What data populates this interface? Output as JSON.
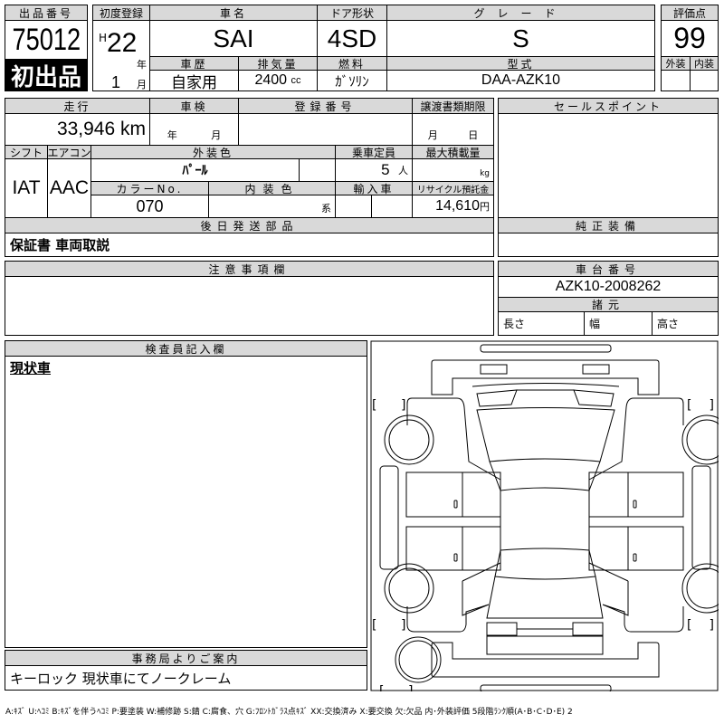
{
  "lot": {
    "label": "出品番号",
    "number": "75012",
    "badge": "初出品"
  },
  "first_reg": {
    "label": "初度登録",
    "era": "H",
    "year": "22",
    "year_unit": "年",
    "month": "1",
    "month_unit": "月"
  },
  "car_name": {
    "label": "車名",
    "value": "SAI"
  },
  "door": {
    "label": "ドア形状",
    "value": "4SD"
  },
  "grade": {
    "label": "グレード",
    "value": "S"
  },
  "score": {
    "label": "評価点",
    "value": "99",
    "exterior_label": "外装",
    "interior_label": "内装",
    "exterior": "",
    "interior": ""
  },
  "history": {
    "label": "車歴",
    "value": "自家用"
  },
  "displacement": {
    "label": "排気量",
    "value": "2400",
    "unit": "cc"
  },
  "fuel": {
    "label": "燃料",
    "value": "ｶﾞｿﾘﾝ"
  },
  "model": {
    "label": "型式",
    "value": "DAA-AZK10"
  },
  "mileage": {
    "label": "走行",
    "value": "33,946 km"
  },
  "inspection": {
    "label": "車検",
    "year_unit": "年",
    "month_unit": "月"
  },
  "reg_number": {
    "label": "登録番号"
  },
  "transfer": {
    "label": "譲渡書類期限",
    "month_unit": "月",
    "day_unit": "日"
  },
  "shift": {
    "label": "シフト",
    "value": "IAT"
  },
  "aircon": {
    "label": "エアコン",
    "value": "AAC"
  },
  "ext_color": {
    "label": "外装色",
    "value": "ﾊﾟｰﾙ"
  },
  "capacity": {
    "label": "乗車定員",
    "value": "5",
    "unit": "人"
  },
  "max_load": {
    "label": "最大積載量",
    "unit": "kg"
  },
  "color_no": {
    "label": "カラーNo.",
    "value": "070"
  },
  "int_color": {
    "label": "内装色",
    "unit": "系"
  },
  "import": {
    "label": "輸入車"
  },
  "recycle": {
    "label": "リサイクル預託金",
    "value": "14,610",
    "unit": "円"
  },
  "later_parts": {
    "label": "後日発送部品",
    "value": "保証書 車両取説"
  },
  "sales_point": {
    "label": "セールスポイント"
  },
  "genuine": {
    "label": "純正装備"
  },
  "notes": {
    "label": "注意事項欄"
  },
  "chassis": {
    "label": "車台番号",
    "value": "AZK10-2008262"
  },
  "specs": {
    "label": "諸元",
    "length": "長さ",
    "width": "幅",
    "height": "高さ"
  },
  "inspector": {
    "label": "検査員記入欄",
    "value": "現状車"
  },
  "office": {
    "label": "事務局よりご案内",
    "value": "キーロック 現状車にてノークレーム"
  },
  "legend": "A:ｷｽﾞ U:ﾍｺﾐ B:ｷｽﾞを伴うﾍｺﾐ P:要塗装 W:補修跡 S:錆 C:腐食、穴 G:ﾌﾛﾝﾄｶﾞﾗｽ点ｷｽﾞ XX:交換済み X:要交換 欠:欠品 内･外装評価 5段階ﾗﾝｸ順(A･B･C･D･E) 2"
}
